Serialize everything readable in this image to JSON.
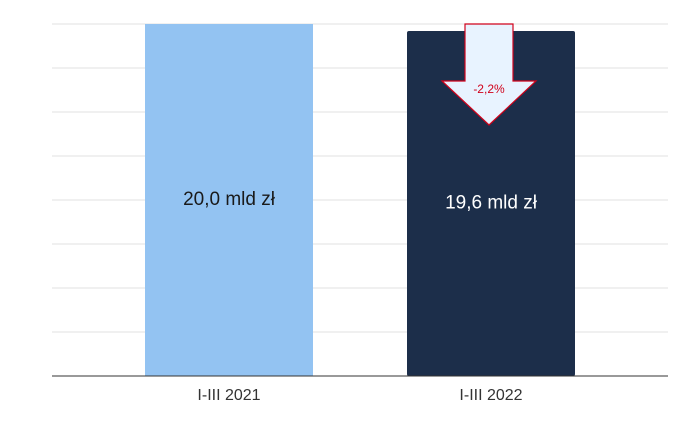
{
  "chart_data": {
    "type": "bar",
    "categories": [
      "I-III 2021",
      "I-III 2022"
    ],
    "values": [
      20.0,
      19.6
    ],
    "value_labels": [
      "20,0 mld zł",
      "19,6 mld zł"
    ],
    "colors": [
      "#93c3f2",
      "#1c2e4a"
    ],
    "ylim": [
      0,
      20
    ],
    "yticks": [
      0,
      2.5,
      5,
      7.5,
      10,
      12.5,
      15,
      17.5,
      20
    ],
    "grid": true,
    "annotations": [
      {
        "text": "-2,2%",
        "color": "#d0021b"
      }
    ]
  }
}
